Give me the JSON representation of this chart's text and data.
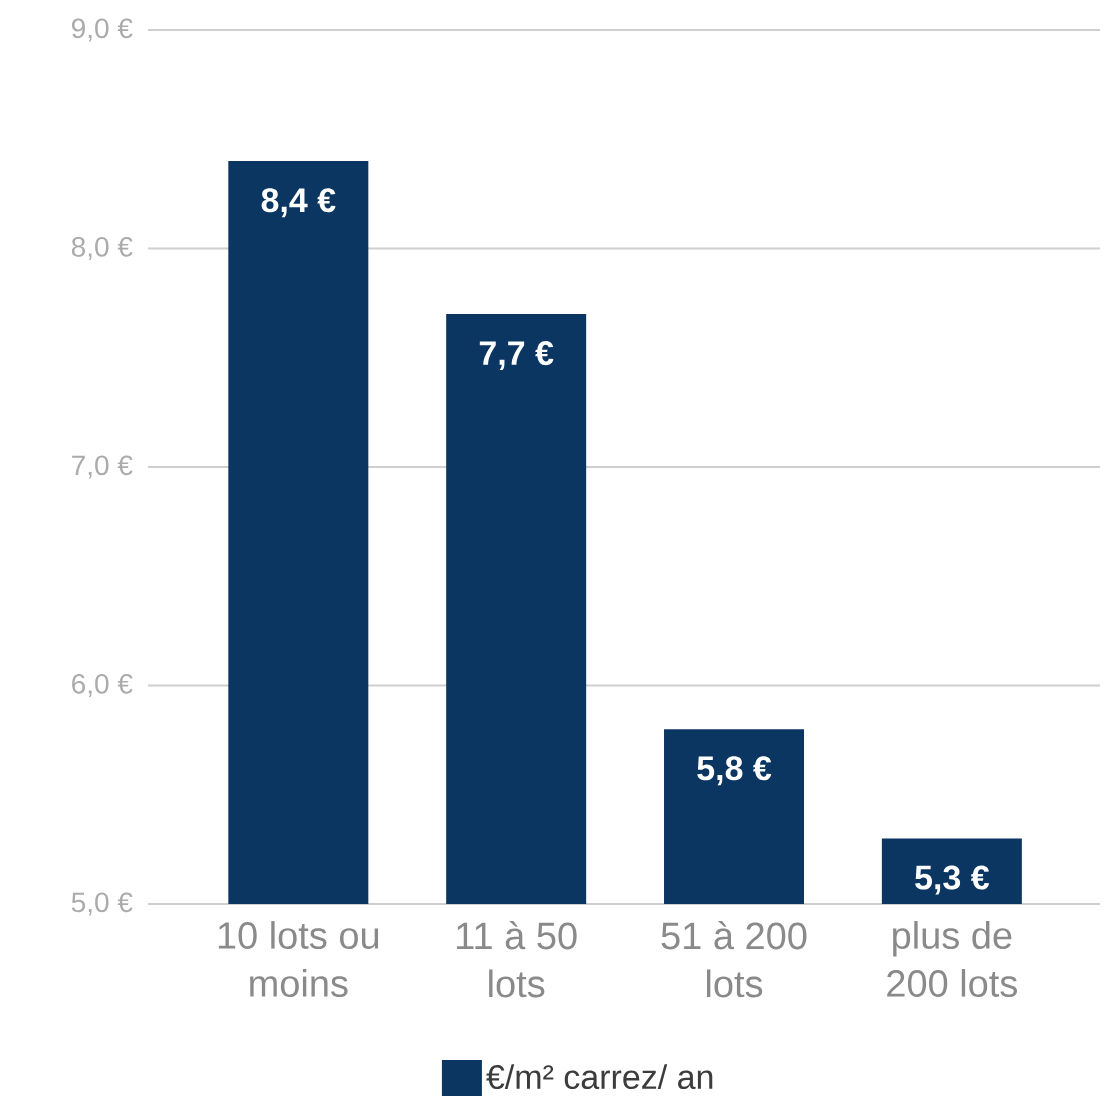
{
  "chart_data": {
    "type": "bar",
    "categories": [
      "10 lots ou moins",
      "11 à 50 lots",
      "51 à 200 lots",
      "plus de 200 lots"
    ],
    "series": [
      {
        "name": "€/m² carrez/ an",
        "color": "#0b3662",
        "values": [
          8.4,
          7.7,
          5.8,
          5.3
        ],
        "value_labels": [
          "8,4 €",
          "7,7 €",
          "5,8 €",
          "5,3 €"
        ]
      }
    ],
    "ylim": [
      5,
      9
    ],
    "yticks": [
      {
        "value": 5,
        "label": "5,0 €"
      },
      {
        "value": 6,
        "label": "6,0 €"
      },
      {
        "value": 7,
        "label": "7,0 €"
      },
      {
        "value": 8,
        "label": "8,0 €"
      },
      {
        "value": 9,
        "label": "9,0 €"
      }
    ],
    "grid": "y",
    "legend": "bottom"
  }
}
